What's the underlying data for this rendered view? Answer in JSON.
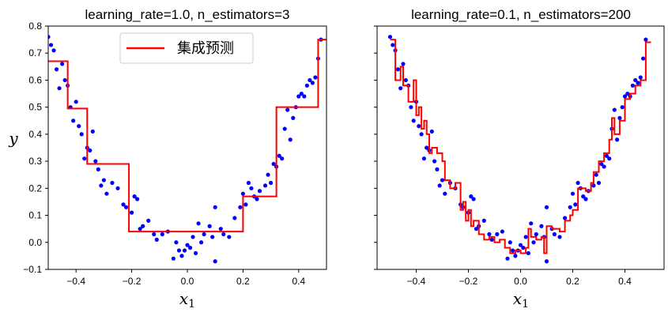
{
  "chart_data": [
    {
      "type": "line+scatter",
      "title": "learning_rate=1.0, n_estimators=3",
      "xlabel": "x",
      "xlabel_sub": "1",
      "ylabel": "y",
      "xlim": [
        -0.5,
        0.5
      ],
      "ylim": [
        -0.1,
        0.8
      ],
      "xticks": [
        -0.4,
        -0.2,
        0.0,
        0.2,
        0.4
      ],
      "xtick_labels": [
        "−0.4",
        "−0.2",
        "0.0",
        "0.2",
        "0.4"
      ],
      "yticks": [
        -0.1,
        0.0,
        0.1,
        0.2,
        0.3,
        0.4,
        0.5,
        0.6,
        0.7,
        0.8
      ],
      "ytick_labels": [
        "−0.1",
        "0.0",
        "0.1",
        "0.2",
        "0.3",
        "0.4",
        "0.5",
        "0.6",
        "0.7",
        "0.8"
      ],
      "show_yticklabels": true,
      "legend": {
        "entries": [
          {
            "name": "集成预测",
            "color": "#ff0000"
          }
        ],
        "placement": "top-center"
      },
      "series": [
        {
          "kind": "step",
          "color": "#ff0000",
          "x": [
            -0.5,
            -0.43,
            -0.43,
            -0.36,
            -0.36,
            -0.21,
            -0.21,
            0.2,
            0.2,
            0.32,
            0.32,
            0.47,
            0.47,
            0.5
          ],
          "y": [
            0.67,
            0.67,
            0.495,
            0.495,
            0.29,
            0.29,
            0.04,
            0.04,
            0.17,
            0.17,
            0.5,
            0.5,
            0.75,
            0.75
          ]
        }
      ]
    },
    {
      "type": "line+scatter",
      "title": "learning_rate=0.1, n_estimators=200",
      "xlabel": "x",
      "xlabel_sub": "1",
      "ylabel": "",
      "xlim": [
        -0.55,
        0.55
      ],
      "ylim": [
        -0.1,
        0.8
      ],
      "xticks": [
        -0.4,
        -0.2,
        0.0,
        0.2,
        0.4
      ],
      "xtick_labels": [
        "−0.4",
        "−0.2",
        "0.0",
        "0.2",
        "0.4"
      ],
      "yticks": [
        -0.1,
        0.0,
        0.1,
        0.2,
        0.3,
        0.4,
        0.5,
        0.6,
        0.7,
        0.8
      ],
      "ytick_labels": [],
      "show_yticklabels": false,
      "series": [
        {
          "kind": "step",
          "color": "#ff0000",
          "x": [
            -0.5,
            -0.48,
            -0.48,
            -0.46,
            -0.46,
            -0.45,
            -0.45,
            -0.43,
            -0.43,
            -0.41,
            -0.41,
            -0.4,
            -0.4,
            -0.39,
            -0.39,
            -0.38,
            -0.38,
            -0.37,
            -0.37,
            -0.36,
            -0.36,
            -0.35,
            -0.35,
            -0.34,
            -0.34,
            -0.32,
            -0.32,
            -0.3,
            -0.3,
            -0.29,
            -0.29,
            -0.27,
            -0.27,
            -0.25,
            -0.25,
            -0.23,
            -0.23,
            -0.22,
            -0.22,
            -0.21,
            -0.21,
            -0.2,
            -0.2,
            -0.19,
            -0.19,
            -0.18,
            -0.18,
            -0.16,
            -0.16,
            -0.14,
            -0.14,
            -0.12,
            -0.12,
            -0.1,
            -0.1,
            -0.08,
            -0.08,
            -0.06,
            -0.06,
            -0.04,
            -0.04,
            -0.02,
            -0.02,
            0.0,
            0.0,
            0.02,
            0.02,
            0.03,
            0.03,
            0.04,
            0.04,
            0.06,
            0.06,
            0.08,
            0.08,
            0.09,
            0.09,
            0.1,
            0.1,
            0.12,
            0.12,
            0.15,
            0.15,
            0.17,
            0.17,
            0.19,
            0.19,
            0.2,
            0.2,
            0.22,
            0.22,
            0.25,
            0.25,
            0.27,
            0.27,
            0.28,
            0.28,
            0.3,
            0.3,
            0.32,
            0.32,
            0.34,
            0.34,
            0.35,
            0.35,
            0.36,
            0.36,
            0.38,
            0.38,
            0.4,
            0.4,
            0.42,
            0.42,
            0.44,
            0.44,
            0.46,
            0.46,
            0.48,
            0.48,
            0.5
          ],
          "y": [
            0.75,
            0.75,
            0.6,
            0.6,
            0.65,
            0.65,
            0.58,
            0.58,
            0.52,
            0.52,
            0.6,
            0.6,
            0.47,
            0.47,
            0.5,
            0.5,
            0.42,
            0.42,
            0.45,
            0.45,
            0.4,
            0.4,
            0.33,
            0.33,
            0.35,
            0.35,
            0.33,
            0.33,
            0.3,
            0.3,
            0.23,
            0.23,
            0.2,
            0.2,
            0.22,
            0.22,
            0.12,
            0.12,
            0.15,
            0.15,
            0.08,
            0.08,
            0.12,
            0.12,
            0.06,
            0.06,
            0.08,
            0.08,
            0.03,
            0.03,
            0.01,
            0.01,
            0.02,
            0.02,
            0.0,
            0.0,
            0.01,
            0.01,
            -0.02,
            -0.02,
            -0.04,
            -0.04,
            -0.03,
            -0.03,
            -0.04,
            -0.04,
            -0.02,
            -0.02,
            0.05,
            0.05,
            0.02,
            0.02,
            0.01,
            0.01,
            0.02,
            0.02,
            -0.04,
            -0.04,
            0.06,
            0.06,
            0.05,
            0.05,
            0.04,
            0.04,
            0.08,
            0.08,
            0.1,
            0.1,
            0.12,
            0.12,
            0.2,
            0.2,
            0.19,
            0.19,
            0.22,
            0.22,
            0.26,
            0.26,
            0.3,
            0.3,
            0.33,
            0.33,
            0.38,
            0.38,
            0.46,
            0.46,
            0.4,
            0.4,
            0.45,
            0.45,
            0.53,
            0.53,
            0.55,
            0.55,
            0.58,
            0.58,
            0.6,
            0.6,
            0.74,
            0.74
          ]
        }
      ]
    }
  ],
  "scatter_points": {
    "color": "#0000ff",
    "x": [
      -0.5,
      -0.49,
      -0.48,
      -0.47,
      -0.46,
      -0.45,
      -0.44,
      -0.43,
      -0.42,
      -0.41,
      -0.4,
      -0.39,
      -0.38,
      -0.37,
      -0.36,
      -0.35,
      -0.34,
      -0.33,
      -0.32,
      -0.31,
      -0.3,
      -0.29,
      -0.27,
      -0.25,
      -0.23,
      -0.22,
      -0.2,
      -0.19,
      -0.18,
      -0.17,
      -0.16,
      -0.14,
      -0.12,
      -0.11,
      -0.09,
      -0.07,
      -0.05,
      -0.04,
      -0.03,
      -0.02,
      -0.01,
      0.0,
      0.01,
      0.02,
      0.03,
      0.04,
      0.05,
      0.06,
      0.08,
      0.09,
      0.1,
      0.1,
      0.12,
      0.13,
      0.15,
      0.17,
      0.19,
      0.2,
      0.21,
      0.22,
      0.23,
      0.24,
      0.25,
      0.26,
      0.28,
      0.29,
      0.3,
      0.31,
      0.32,
      0.33,
      0.34,
      0.35,
      0.36,
      0.37,
      0.38,
      0.39,
      0.4,
      0.41,
      0.42,
      0.43,
      0.44,
      0.45,
      0.46,
      0.47,
      0.48
    ],
    "y": [
      0.76,
      0.73,
      0.71,
      0.64,
      0.57,
      0.66,
      0.6,
      0.58,
      0.5,
      0.45,
      0.52,
      0.43,
      0.4,
      0.31,
      0.35,
      0.34,
      0.41,
      0.3,
      0.27,
      0.21,
      0.23,
      0.18,
      0.22,
      0.2,
      0.14,
      0.13,
      0.11,
      0.17,
      0.16,
      0.05,
      0.06,
      0.08,
      0.03,
      0.01,
      0.03,
      0.04,
      -0.06,
      0.0,
      -0.03,
      -0.05,
      -0.03,
      -0.01,
      -0.02,
      0.02,
      -0.04,
      0.07,
      0.0,
      0.03,
      0.06,
      0.02,
      -0.07,
      0.13,
      0.05,
      0.03,
      0.02,
      0.09,
      0.13,
      0.18,
      0.14,
      0.22,
      0.2,
      0.17,
      0.16,
      0.19,
      0.21,
      0.25,
      0.22,
      0.29,
      0.28,
      0.32,
      0.31,
      0.42,
      0.49,
      0.38,
      0.46,
      0.5,
      0.54,
      0.55,
      0.54,
      0.58,
      0.6,
      0.59,
      0.61,
      0.68,
      0.75
    ]
  }
}
